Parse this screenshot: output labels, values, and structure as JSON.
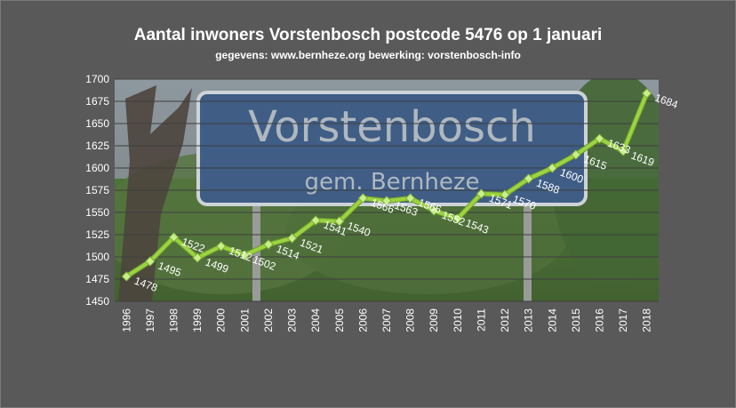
{
  "chart_data": {
    "type": "line",
    "title": "Aantal inwoners Vorstenbosch postcode 5476 op 1 januari",
    "subtitle": "gegevens: www.bernheze.org  bewerking: vorstenbosch-info",
    "xlabel": "",
    "ylabel": "",
    "ylim": [
      1450,
      1700
    ],
    "y_ticks": [
      1450,
      1475,
      1500,
      1525,
      1550,
      1575,
      1600,
      1625,
      1650,
      1675,
      1700
    ],
    "grid": true,
    "legend": "none",
    "categories": [
      "1996",
      "1997",
      "1998",
      "1999",
      "2000",
      "2001",
      "2002",
      "2003",
      "2004",
      "2005",
      "2006",
      "2007",
      "2008",
      "2009",
      "2010",
      "2011",
      "2012",
      "2013",
      "2014",
      "2015",
      "2016",
      "2017",
      "2018"
    ],
    "series": [
      {
        "values": [
          1478,
          1495,
          1522,
          1499,
          1512,
          1502,
          1514,
          1521,
          1541,
          1540,
          1566,
          1563,
          1566,
          1552,
          1543,
          1571,
          1570,
          1588,
          1600,
          1615,
          1633,
          1619,
          1684
        ],
        "color": "#9bd441"
      }
    ],
    "background_photo": {
      "sign_line_1": "Vorstenbosch",
      "sign_line_2": "gem. Bernheze"
    }
  }
}
